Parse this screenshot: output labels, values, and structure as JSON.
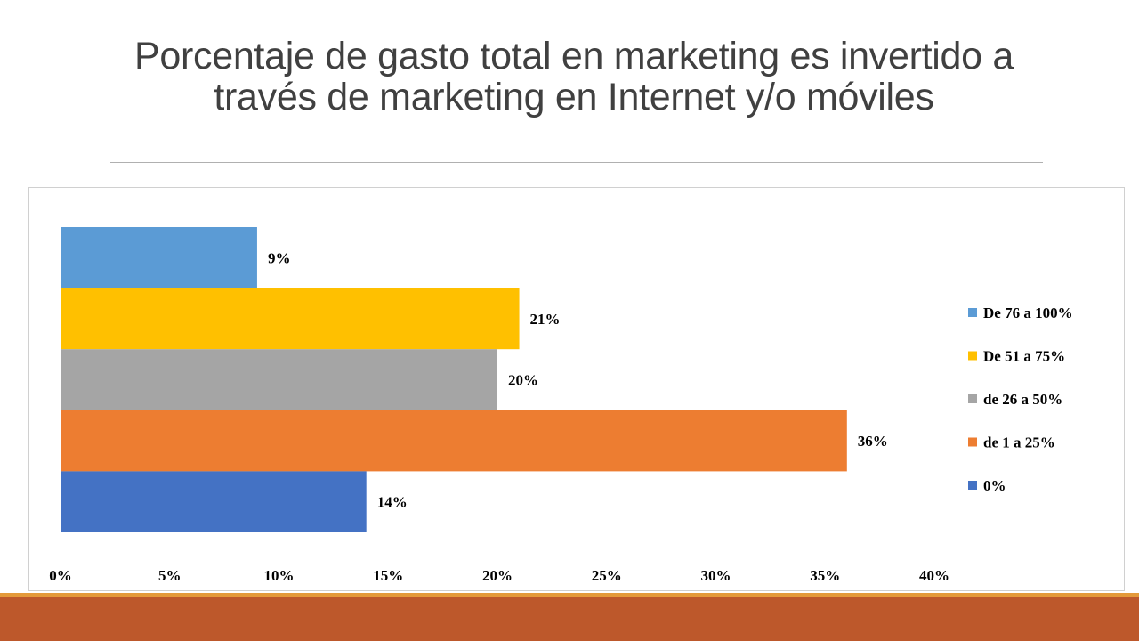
{
  "title": {
    "line1": "Porcentaje de gasto total en marketing es invertido a",
    "line2": "través de marketing en Internet y/o móviles"
  },
  "chart_data": {
    "type": "bar",
    "orientation": "horizontal",
    "categories": [
      "De 76 a 100%",
      "De 51 a 75%",
      "de 26 a 50%",
      "de 1 a 25%",
      "0%"
    ],
    "values": [
      9,
      21,
      20,
      36,
      14
    ],
    "data_labels": [
      "9%",
      "21%",
      "20%",
      "36%",
      "14%"
    ],
    "colors": [
      "#5b9bd5",
      "#ffc000",
      "#a5a5a5",
      "#ed7d31",
      "#4472c4"
    ],
    "xlim": [
      0,
      40
    ],
    "x_ticks": [
      "0%",
      "5%",
      "10%",
      "15%",
      "20%",
      "25%",
      "30%",
      "35%",
      "40%"
    ],
    "grid": false,
    "legend": {
      "position": "right",
      "entries": [
        "De 76 a 100%",
        "De 51 a 75%",
        "de 26 a 50%",
        "de 1 a 25%",
        "0%"
      ]
    }
  }
}
